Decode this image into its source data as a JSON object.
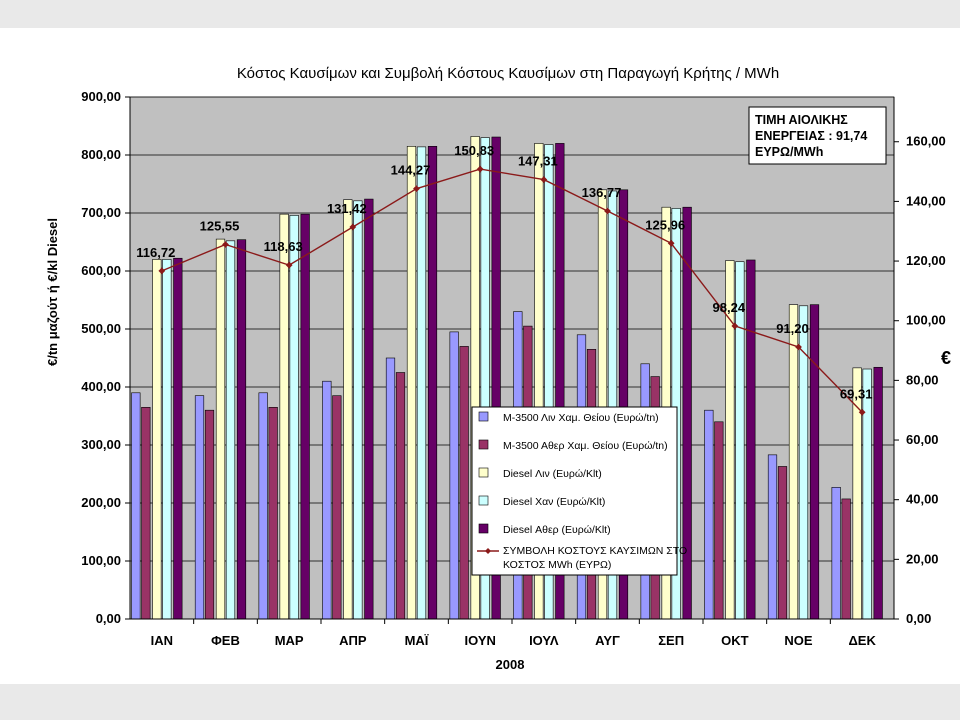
{
  "chart_data": {
    "type": "bar",
    "title": "Κόστος Καυσίμων και Συμβολή Κόστους Καυσίμων στη Παραγωγή Κρήτης / MWh",
    "xlabel": "2008",
    "ylabel": "€/tn μαζούτ ή €/kl Diesel",
    "y2label": "€",
    "ylim": [
      0,
      900
    ],
    "y2lim": [
      0,
      175
    ],
    "yticks": [
      "0,00",
      "100,00",
      "200,00",
      "300,00",
      "400,00",
      "500,00",
      "600,00",
      "700,00",
      "800,00",
      "900,00"
    ],
    "y2ticks": [
      "0,00",
      "20,00",
      "40,00",
      "60,00",
      "80,00",
      "100,00",
      "120,00",
      "140,00",
      "160,00"
    ],
    "grid": true,
    "categories": [
      "ΙΑΝ",
      "ΦΕΒ",
      "ΜΑΡ",
      "ΑΠΡ",
      "ΜΑΪ",
      "ΙΟΥΝ",
      "ΙΟΥΛ",
      "ΑΥΓ",
      "ΣΕΠ",
      "ΟΚΤ",
      "ΝΟΕ",
      "ΔΕΚ"
    ],
    "series": [
      {
        "name": "Μ-3500 Λιν Χαμ. Θείου (Ευρώ/tn)",
        "color": "#9999ff",
        "values": [
          390,
          385,
          390,
          410,
          450,
          495,
          530,
          490,
          440,
          360,
          283,
          227
        ]
      },
      {
        "name": "Μ-3500 Αθερ Χαμ. Θείου (Ευρώ/tn)",
        "color": "#993366",
        "values": [
          365,
          360,
          365,
          385,
          425,
          470,
          505,
          465,
          418,
          340,
          263,
          207
        ]
      },
      {
        "name": "Diesel Λιν (Ευρώ/Κlt)",
        "color": "#ffffcc",
        "values": [
          620,
          655,
          698,
          723,
          815,
          832,
          820,
          740,
          710,
          618,
          542,
          433
        ]
      },
      {
        "name": "Diesel Χαν (Ευρώ/Κlt)",
        "color": "#ccffff",
        "values": [
          620,
          652,
          696,
          721,
          814,
          830,
          818,
          738,
          708,
          616,
          540,
          431
        ]
      },
      {
        "name": "Diesel Αθερ (Ευρώ/Κlt)",
        "color": "#660066",
        "values": [
          622,
          654,
          698,
          724,
          815,
          831,
          820,
          740,
          710,
          619,
          542,
          434
        ]
      }
    ],
    "line_series": {
      "name": "ΣΥΜΒΟΛΗ ΚΟΣΤΟΥΣ ΚΑΥΣΙΜΩΝ ΣΤΟ ΚΟΣΤΟΣ MWh (ΕΥΡΩ)",
      "color": "#8b1a1a",
      "axis": "right",
      "values": [
        116.72,
        125.55,
        118.63,
        131.42,
        144.27,
        150.83,
        147.31,
        136.77,
        125.96,
        98.24,
        91.2,
        69.31
      ],
      "labels": [
        "116,72",
        "125,55",
        "118,63",
        "131,42",
        "144,27",
        "150,83",
        "147,31",
        "136,77",
        "125,96",
        "98,24",
        "91,20",
        "69,31"
      ]
    },
    "legend_placement": "bottom-center",
    "annotation": {
      "lines": [
        "ΤΙΜΗ ΑΙΟΛΙΚΗΣ",
        "ΕΝΕΡΓΕΙΑΣ : 91,74",
        "ΕΥΡΩ/MWh"
      ],
      "placement": "top-right"
    }
  }
}
